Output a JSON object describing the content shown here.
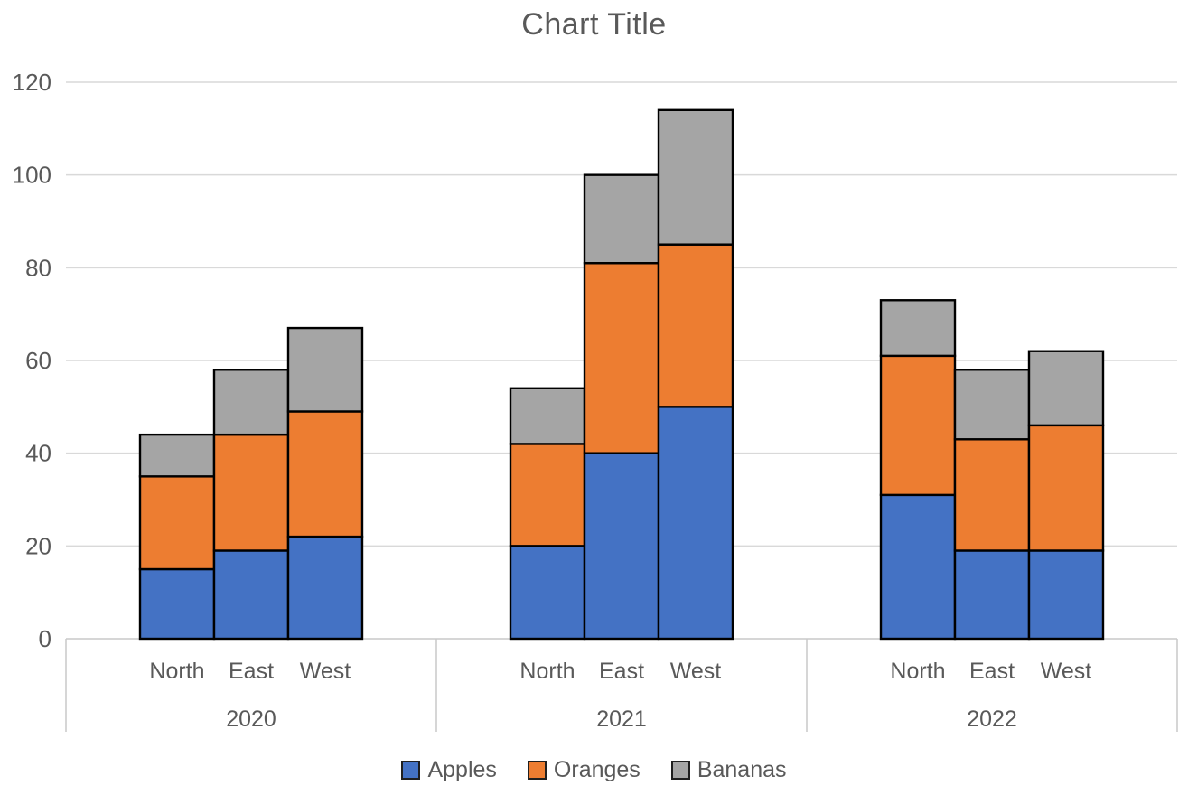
{
  "chart_data": {
    "type": "bar",
    "stacked": true,
    "title": "Chart Title",
    "group_labels": [
      "2020",
      "2021",
      "2022"
    ],
    "categories": [
      "North",
      "East",
      "West"
    ],
    "series": [
      {
        "name": "Apples",
        "color": "#4472C4",
        "values": [
          [
            15,
            19,
            22
          ],
          [
            20,
            40,
            50
          ],
          [
            31,
            19,
            19
          ]
        ]
      },
      {
        "name": "Oranges",
        "color": "#ED7D31",
        "values": [
          [
            20,
            25,
            27
          ],
          [
            22,
            41,
            35
          ],
          [
            30,
            24,
            27
          ]
        ]
      },
      {
        "name": "Bananas",
        "color": "#A5A5A5",
        "values": [
          [
            9,
            14,
            18
          ],
          [
            12,
            19,
            29
          ],
          [
            12,
            15,
            16
          ]
        ]
      }
    ],
    "stack_totals": [
      [
        44,
        58,
        67
      ],
      [
        54,
        100,
        114
      ],
      [
        73,
        58,
        62
      ]
    ],
    "ylim": [
      0,
      120
    ],
    "yticks": [
      0,
      20,
      40,
      60,
      80,
      100,
      120
    ],
    "grid": true,
    "legend_position": "bottom",
    "colors": {
      "bar_border": "#000000",
      "gridline": "#D9D9D9",
      "axis_line": "#C9C9C9",
      "text": "#595959"
    }
  }
}
